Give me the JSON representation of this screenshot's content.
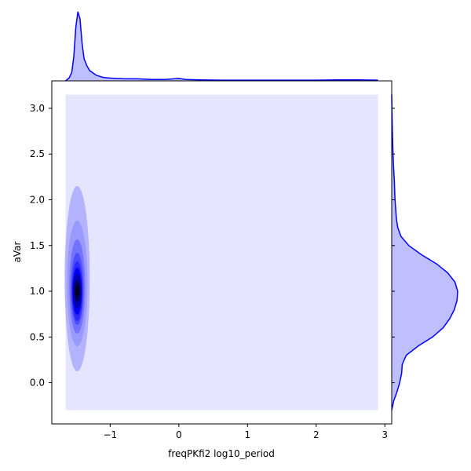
{
  "chart_data": {
    "type": "jointplot-kde",
    "xlabel": "freqPKfi2 log10_period",
    "ylabel": "aVar",
    "xlim": [
      -1.85,
      3.1
    ],
    "ylim": [
      -0.45,
      3.3
    ],
    "xticks": [
      -1,
      0,
      1,
      2,
      3
    ],
    "xtick_labels": [
      "−1",
      "0",
      "1",
      "2",
      "3"
    ],
    "yticks": [
      0.0,
      0.5,
      1.0,
      1.5,
      2.0,
      2.5,
      3.0
    ],
    "ytick_labels": [
      "0.0",
      "0.5",
      "1.0",
      "1.5",
      "2.0",
      "2.5",
      "3.0"
    ],
    "kde_extent": {
      "x": [
        -1.65,
        2.9
      ],
      "y": [
        -0.3,
        3.15
      ]
    },
    "kde_peak": {
      "x": -1.48,
      "y": 1.0
    },
    "kde_level_color": "#0000ff",
    "background_level_color": "#e5e5ff",
    "marginal_x": {
      "x": [
        -1.65,
        -1.6,
        -1.56,
        -1.53,
        -1.5,
        -1.47,
        -1.44,
        -1.41,
        -1.38,
        -1.34,
        -1.3,
        -1.2,
        -1.1,
        -1.0,
        -0.8,
        -0.6,
        -0.4,
        -0.2,
        0.0,
        0.1,
        0.3,
        0.6,
        1.0,
        1.5,
        2.0,
        2.3,
        2.6,
        2.9
      ],
      "density": [
        0.0,
        0.04,
        0.12,
        0.35,
        0.78,
        1.0,
        0.9,
        0.55,
        0.32,
        0.22,
        0.15,
        0.08,
        0.05,
        0.04,
        0.03,
        0.03,
        0.02,
        0.02,
        0.035,
        0.02,
        0.015,
        0.01,
        0.01,
        0.01,
        0.01,
        0.015,
        0.015,
        0.01
      ]
    },
    "marginal_y": {
      "y": [
        -0.3,
        -0.2,
        -0.1,
        0.0,
        0.1,
        0.2,
        0.3,
        0.4,
        0.5,
        0.6,
        0.7,
        0.8,
        0.9,
        1.0,
        1.1,
        1.2,
        1.3,
        1.4,
        1.5,
        1.6,
        1.7,
        1.8,
        2.0,
        2.2,
        2.4,
        2.6,
        2.8,
        3.0,
        3.15
      ],
      "density": [
        0.0,
        0.03,
        0.08,
        0.12,
        0.15,
        0.16,
        0.22,
        0.4,
        0.62,
        0.78,
        0.88,
        0.95,
        0.99,
        1.0,
        0.96,
        0.85,
        0.68,
        0.45,
        0.26,
        0.14,
        0.09,
        0.07,
        0.05,
        0.04,
        0.025,
        0.015,
        0.008,
        0.004,
        0.0
      ]
    },
    "marginal_line_color": "#0000ff",
    "marginal_fill_color": "#bfbfff"
  }
}
